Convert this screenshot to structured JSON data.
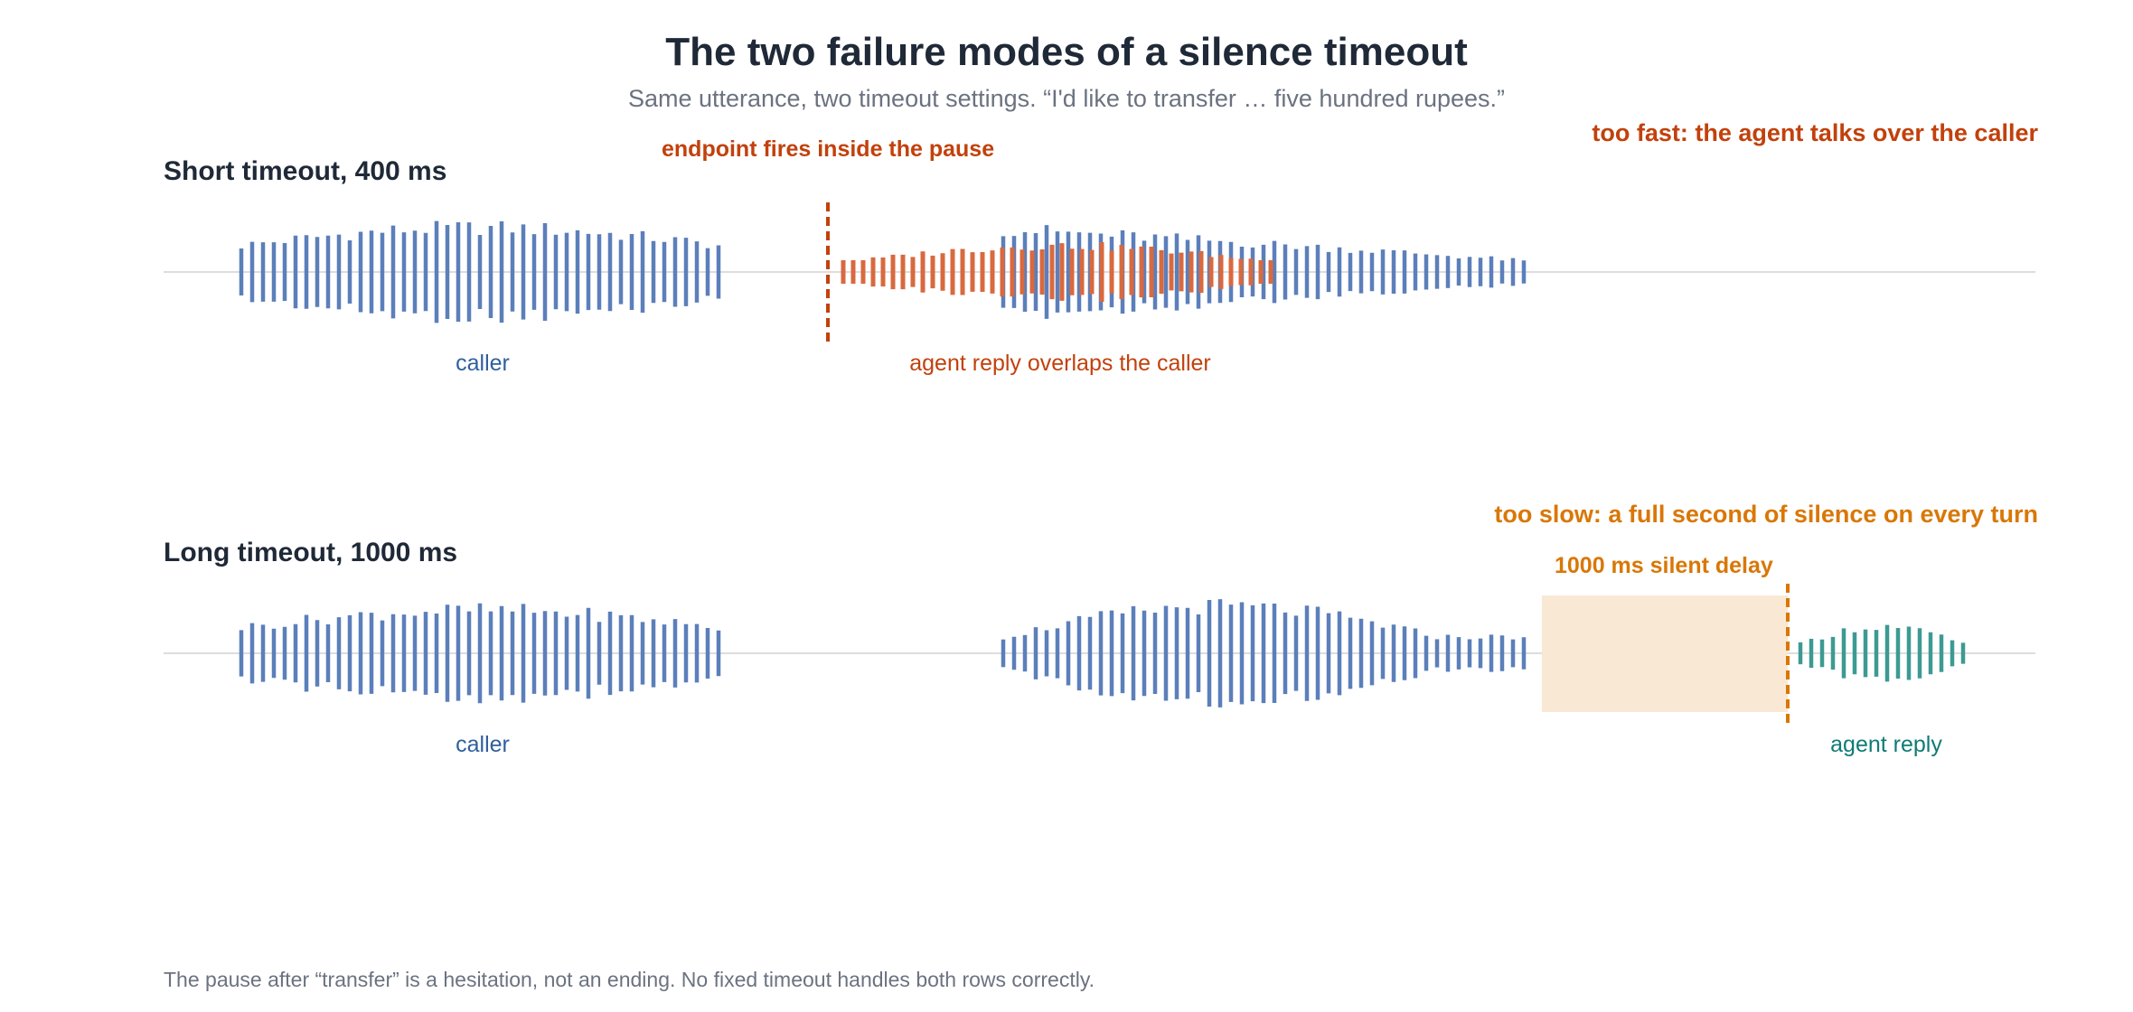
{
  "title": "The two failure modes of a silence timeout",
  "subtitle": "Same utterance, two timeout settings. “I'd like to transfer … five hundred rupees.”",
  "colors": {
    "caller": "#5b7fba",
    "agent_overlap": "#d9693f",
    "agent_reply": "#3d9a93",
    "endpoint_short": "#c2410c",
    "endpoint_long": "#d97706",
    "delay_fill": "#f9e8d4",
    "baseline": "#dddddd"
  },
  "rows": [
    {
      "title": "Short timeout, 400 ms",
      "timeout_ms": 400,
      "verdict": "too fast: the agent talks over the caller",
      "marker_label": "endpoint fires inside the pause",
      "labels": {
        "caller": "caller",
        "agent": "agent reply overlaps the caller"
      }
    },
    {
      "title": "Long timeout, 1000 ms",
      "timeout_ms": 1000,
      "verdict": "too slow: a full second of silence on every turn",
      "marker_label": "1000 ms silent delay",
      "labels": {
        "caller": "caller",
        "agent": "agent reply"
      }
    }
  ],
  "footer": "The pause after “transfer” is a hesitation, not an ending. No fixed timeout handles both rows correctly."
}
